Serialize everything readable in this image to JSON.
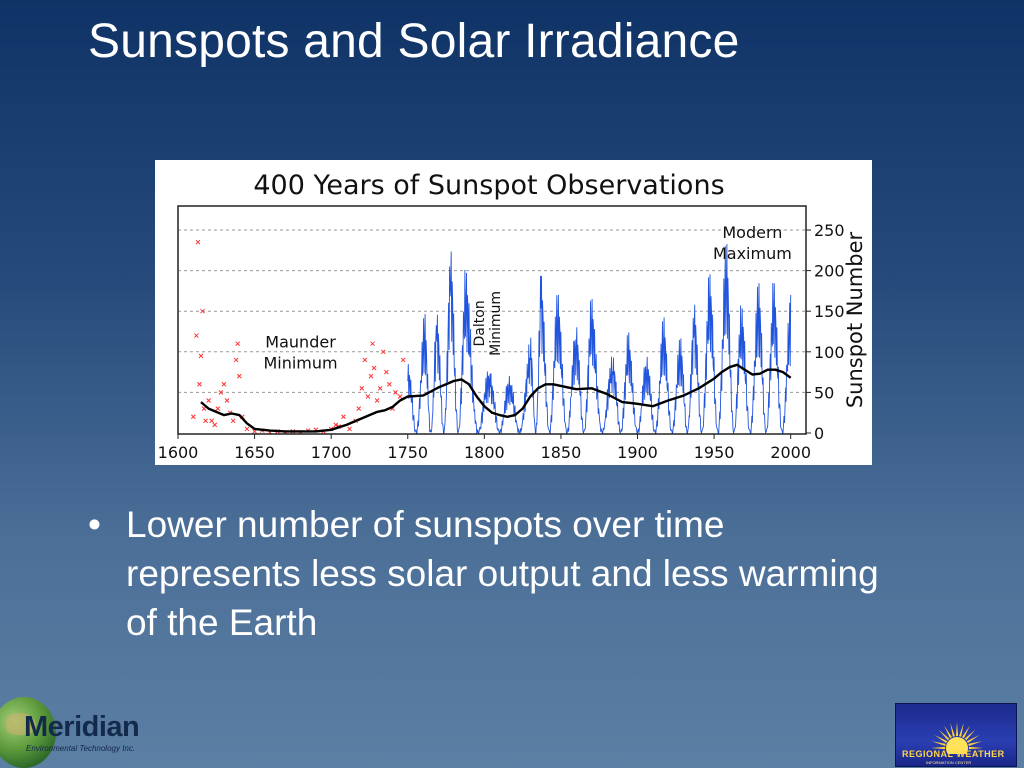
{
  "slide": {
    "title": "Sunspots and Solar Irradiance",
    "bullet": "Lower number of sunspots over time represents less solar output and less warming of the Earth"
  },
  "logos": {
    "left_name": "Meridian",
    "left_sub": "Environmental Technology Inc.",
    "right_name": "REGIONAL WEATHER",
    "right_sub": "INFORMATION CENTER"
  },
  "colors": {
    "background_top": "#0f3366",
    "background_bottom": "#5c7fa4",
    "observations_early": "#ff3333",
    "observations_modern": "#2255dd",
    "smoothed_average": "#000000"
  },
  "chart_data": {
    "type": "line",
    "title": "400 Years of Sunspot Observations",
    "ylabel": "Sunspot Number",
    "xlabel": "",
    "xlim": [
      1600,
      2010
    ],
    "ylim": [
      0,
      260
    ],
    "x_ticks": [
      1600,
      1650,
      1700,
      1750,
      1800,
      1850,
      1900,
      1950,
      2000
    ],
    "y_ticks": [
      0,
      50,
      100,
      150,
      200,
      250
    ],
    "grid": "horizontal dashed",
    "annotations": [
      {
        "text": [
          "Maunder",
          "Minimum"
        ],
        "x": 1680,
        "y": 105
      },
      {
        "text": [
          "Dalton",
          "Minimum"
        ],
        "x": 1803,
        "y": 135,
        "rotation": "vertical"
      },
      {
        "text": [
          "Modern",
          "Maximum"
        ],
        "x": 1975,
        "y": 240
      }
    ],
    "series": [
      {
        "style": "red x markers",
        "x": [
          1610,
          1612,
          1613,
          1614,
          1615,
          1616,
          1617,
          1618,
          1620,
          1622,
          1624,
          1626,
          1628,
          1630,
          1632,
          1634,
          1636,
          1638,
          1639,
          1640,
          1642,
          1645,
          1650,
          1655,
          1660,
          1665,
          1670,
          1675,
          1680,
          1685,
          1690,
          1695,
          1700,
          1703,
          1705,
          1708,
          1712,
          1716,
          1718,
          1720,
          1722,
          1724,
          1726,
          1727,
          1728,
          1730,
          1732,
          1734,
          1736,
          1738,
          1740,
          1742,
          1745,
          1747
        ],
        "y": [
          20,
          120,
          235,
          60,
          95,
          150,
          30,
          15,
          40,
          15,
          10,
          30,
          50,
          60,
          40,
          25,
          15,
          90,
          110,
          70,
          20,
          5,
          2,
          3,
          1,
          2,
          1,
          2,
          1,
          3,
          4,
          2,
          5,
          10,
          8,
          20,
          5,
          15,
          30,
          55,
          90,
          45,
          70,
          110,
          80,
          40,
          55,
          100,
          75,
          60,
          30,
          50,
          45,
          90
        ]
      },
      {
        "style": "blue line",
        "peaks": [
          [
            1750,
            85
          ],
          [
            1761,
            155
          ],
          [
            1769,
            150
          ],
          [
            1778,
            238
          ],
          [
            1788,
            210
          ],
          [
            1804,
            75
          ],
          [
            1816,
            70
          ],
          [
            1830,
            120
          ],
          [
            1837,
            205
          ],
          [
            1848,
            180
          ],
          [
            1860,
            135
          ],
          [
            1870,
            175
          ],
          [
            1884,
            95
          ],
          [
            1894,
            130
          ],
          [
            1906,
            95
          ],
          [
            1917,
            150
          ],
          [
            1928,
            120
          ],
          [
            1937,
            165
          ],
          [
            1947,
            205
          ],
          [
            1958,
            250
          ],
          [
            1968,
            160
          ],
          [
            1979,
            195
          ],
          [
            1989,
            195
          ],
          [
            2000,
            170
          ]
        ]
      },
      {
        "style": "black smoothed line",
        "x": [
          1615,
          1620,
          1625,
          1630,
          1635,
          1640,
          1645,
          1650,
          1660,
          1670,
          1680,
          1690,
          1700,
          1705,
          1710,
          1715,
          1720,
          1725,
          1730,
          1735,
          1740,
          1745,
          1750,
          1760,
          1770,
          1780,
          1785,
          1790,
          1795,
          1800,
          1805,
          1810,
          1815,
          1820,
          1825,
          1830,
          1835,
          1840,
          1845,
          1850,
          1860,
          1870,
          1880,
          1890,
          1900,
          1910,
          1920,
          1930,
          1940,
          1950,
          1955,
          1960,
          1965,
          1970,
          1975,
          1980,
          1985,
          1990,
          1995,
          2000
        ],
        "y": [
          38,
          30,
          26,
          22,
          24,
          22,
          12,
          5,
          3,
          2,
          2,
          2,
          4,
          7,
          10,
          14,
          18,
          22,
          26,
          28,
          32,
          40,
          45,
          46,
          56,
          64,
          66,
          60,
          45,
          33,
          25,
          22,
          20,
          22,
          30,
          45,
          55,
          60,
          60,
          58,
          54,
          55,
          48,
          38,
          36,
          33,
          40,
          46,
          55,
          67,
          75,
          81,
          84,
          78,
          72,
          73,
          78,
          78,
          75,
          68
        ]
      }
    ]
  }
}
